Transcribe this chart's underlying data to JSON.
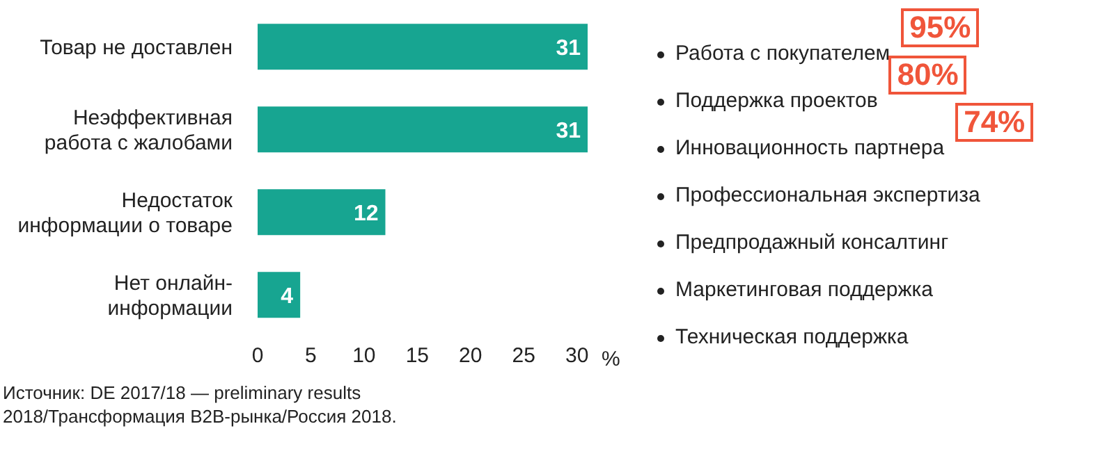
{
  "chart_data": [
    {
      "type": "bar",
      "orientation": "horizontal",
      "categories": [
        "Товар не доставлен",
        "Неэффективная работа с жалобами",
        "Недостаток информации о товаре",
        "Нет онлайн-информации"
      ],
      "values": [
        31,
        31,
        12,
        4
      ],
      "color": "#17a591",
      "xlim": [
        0,
        31
      ],
      "xticks": [
        0,
        5,
        10,
        15,
        20,
        25,
        30
      ],
      "xlabel": "%",
      "data_labels": true,
      "grid": false,
      "legend": false,
      "annotations": [
        "Источник: DE 2017/18 — preliminary results",
        "2018/Трансформация B2B-рынка/Россия 2018."
      ]
    },
    {
      "type": "other",
      "categories": [
        "Работа с покупателем",
        "Поддержка проектов",
        "Инновационность партнера",
        "Профессиональная экспертиза",
        "Предпродажный консалтинг",
        "Маркетинговая поддержка",
        "Техническая поддержка"
      ],
      "values": [
        95,
        80,
        74,
        null,
        null,
        null,
        null
      ],
      "value_labels": [
        "95%",
        "80%",
        "74%",
        null,
        null,
        null,
        null
      ],
      "color": "#f0553a"
    }
  ]
}
